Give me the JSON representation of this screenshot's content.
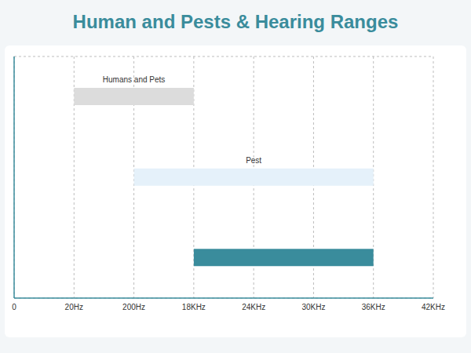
{
  "chart_data": {
    "type": "bar",
    "title": "Human and Pests & Hearing Ranges",
    "orientation": "horizontal",
    "categories": [
      "Humans and Pets",
      "Pest",
      null
    ],
    "values": [
      [
        20,
        18000
      ],
      [
        200,
        36000
      ],
      [
        18000,
        36000
      ]
    ],
    "colors": [
      "#dcdcdc",
      "#e5f1fa",
      "#3a8c9c"
    ],
    "xlim": [
      0,
      42000
    ],
    "xticks": [
      0,
      {
        "value": 20,
        "label": "20Hz"
      },
      {
        "value": 200,
        "label": "200Hz"
      },
      {
        "value": 18000,
        "label": "18KHz"
      },
      {
        "value": 24000,
        "label": "24KHz"
      },
      {
        "value": 30000,
        "label": "30KHz"
      },
      {
        "value": 36000,
        "label": "36KHz"
      },
      {
        "value": 42000,
        "label": "42KHz"
      }
    ],
    "grid": true,
    "tick_labels": "x",
    "data_labels": false
  }
}
